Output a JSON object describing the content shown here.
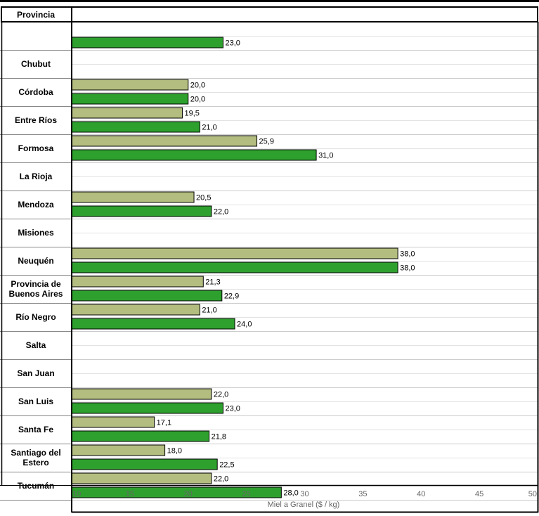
{
  "chart_data": {
    "type": "bar",
    "orientation": "horizontal",
    "header": "Provincia",
    "xlabel": "Miel a Granel ($ / kg)",
    "xlim": [
      10,
      50
    ],
    "xticks": [
      10,
      15,
      20,
      25,
      30,
      35,
      40,
      45,
      50
    ],
    "colors": {
      "series_a": "#b3bd7f",
      "series_b": "#2ea02e"
    },
    "rows": [
      {
        "label": "",
        "a": null,
        "b": 23.0,
        "a_text": "",
        "b_text": "23,0"
      },
      {
        "label": "Chubut",
        "a": null,
        "b": null,
        "a_text": "",
        "b_text": ""
      },
      {
        "label": "Córdoba",
        "a": 20.0,
        "b": 20.0,
        "a_text": "20,0",
        "b_text": "20,0"
      },
      {
        "label": "Entre Ríos",
        "a": 19.5,
        "b": 21.0,
        "a_text": "19,5",
        "b_text": "21,0"
      },
      {
        "label": "Formosa",
        "a": 25.9,
        "b": 31.0,
        "a_text": "25,9",
        "b_text": "31,0"
      },
      {
        "label": "La Rioja",
        "a": null,
        "b": null,
        "a_text": "",
        "b_text": ""
      },
      {
        "label": "Mendoza",
        "a": 20.5,
        "b": 22.0,
        "a_text": "20,5",
        "b_text": "22,0"
      },
      {
        "label": "Misiones",
        "a": null,
        "b": null,
        "a_text": "",
        "b_text": ""
      },
      {
        "label": "Neuquén",
        "a": 38.0,
        "b": 38.0,
        "a_text": "38,0",
        "b_text": "38,0"
      },
      {
        "label": "Provincia de Buenos Aires",
        "a": 21.3,
        "b": 22.9,
        "a_text": "21,3",
        "b_text": "22,9"
      },
      {
        "label": "Río Negro",
        "a": 21.0,
        "b": 24.0,
        "a_text": "21,0",
        "b_text": "24,0"
      },
      {
        "label": "Salta",
        "a": null,
        "b": null,
        "a_text": "",
        "b_text": ""
      },
      {
        "label": "San Juan",
        "a": null,
        "b": null,
        "a_text": "",
        "b_text": ""
      },
      {
        "label": "San Luis",
        "a": 22.0,
        "b": 23.0,
        "a_text": "22,0",
        "b_text": "23,0"
      },
      {
        "label": "Santa Fe",
        "a": 17.1,
        "b": 21.8,
        "a_text": "17,1",
        "b_text": "21,8"
      },
      {
        "label": "Santiago del Estero",
        "a": 18.0,
        "b": 22.5,
        "a_text": "18,0",
        "b_text": "22,5"
      },
      {
        "label": "Tucumán",
        "a": 22.0,
        "b": 28.0,
        "a_text": "22,0",
        "b_text": "28,0"
      }
    ]
  }
}
